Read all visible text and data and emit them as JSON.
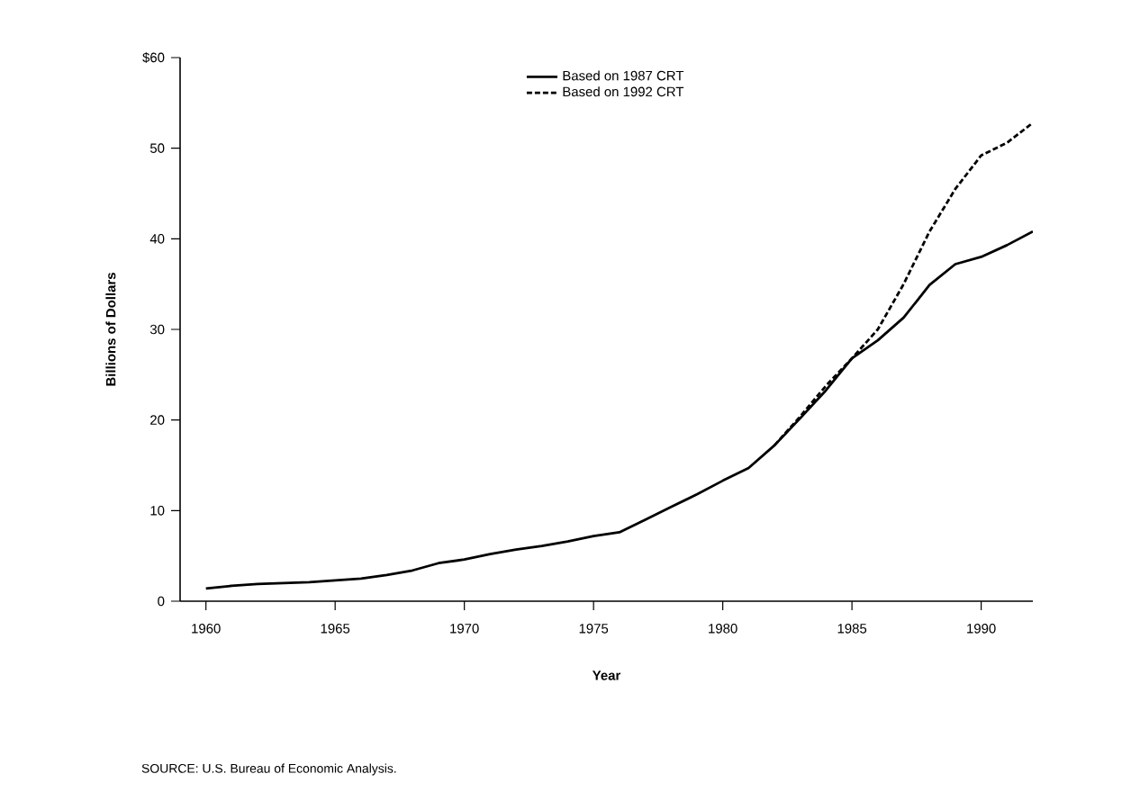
{
  "chart_data": {
    "type": "line",
    "xlabel": "Year",
    "ylabel": "Billions of Dollars",
    "xlim": [
      1959,
      1992
    ],
    "xticks": [
      1960,
      1965,
      1970,
      1975,
      1980,
      1985,
      1990
    ],
    "ylim": [
      0,
      60
    ],
    "yticks": [
      0,
      10,
      20,
      30,
      40,
      50,
      {
        "value": 60,
        "label": "$60"
      }
    ],
    "legend": "top",
    "grid": false,
    "series": [
      {
        "name": "Based on 1987 CRT",
        "color": "#000000",
        "line_style": "solid",
        "x": [
          1960,
          1961,
          1962,
          1963,
          1964,
          1965,
          1966,
          1967,
          1968,
          1969,
          1970,
          1971,
          1972,
          1973,
          1974,
          1975,
          1976,
          1977,
          1978,
          1979,
          1980,
          1981,
          1982,
          1983,
          1984,
          1985,
          1986,
          1987,
          1988,
          1989,
          1990,
          1991,
          1992
        ],
        "values": [
          1.4,
          1.7,
          1.9,
          2.0,
          2.1,
          2.3,
          2.5,
          2.9,
          3.4,
          4.2,
          4.6,
          5.2,
          5.7,
          6.1,
          6.6,
          7.2,
          7.6,
          9.0,
          10.4,
          11.8,
          13.3,
          14.7,
          17.2,
          20.2,
          23.3,
          26.8,
          28.8,
          31.3,
          34.9,
          37.2,
          38.0,
          39.3,
          40.8
        ]
      },
      {
        "name": "Based on 1992 CRT",
        "color": "#000000",
        "line_style": "dashed",
        "x": [
          1982,
          1983,
          1984,
          1985,
          1986,
          1987,
          1988,
          1989,
          1990,
          1991,
          1992
        ],
        "values": [
          17.2,
          20.4,
          23.8,
          26.8,
          30.0,
          35.0,
          40.8,
          45.5,
          49.2,
          50.6,
          52.8
        ]
      }
    ],
    "annotations": [
      "SOURCE: U.S. Bureau of Economic Analysis."
    ]
  }
}
